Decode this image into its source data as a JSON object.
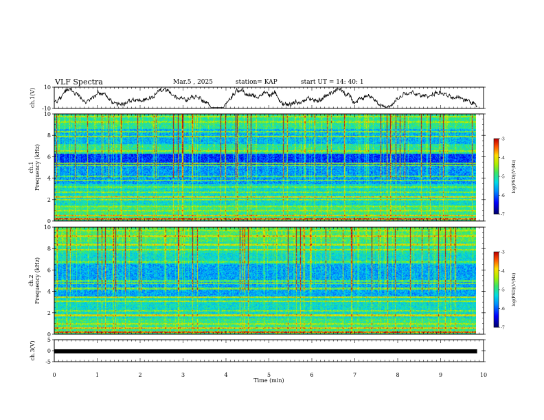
{
  "header": {
    "title": "VLF Spectra",
    "date": "Mar.5 , 2025",
    "station": "station= KAP",
    "start": "start UT = 14: 40: 1"
  },
  "chart_data": [
    {
      "type": "line",
      "name": "ch1-waveform",
      "ylabel": "ch.1(V)",
      "ylim": [
        -10,
        10
      ],
      "yticks": [
        10,
        -10
      ],
      "xlim": [
        0,
        10
      ],
      "x_end": 9.85
    },
    {
      "type": "heatmap",
      "name": "ch1-spectrogram",
      "ylabel": "ch.1\nFrequency (kHz)",
      "ylabel_lines": [
        "ch.1",
        "Frequency (kHz)"
      ],
      "ylim": [
        0,
        10
      ],
      "yticks": [
        0,
        2,
        4,
        6,
        8,
        10
      ],
      "xlim": [
        0,
        10
      ],
      "x_end": 9.85,
      "colorbar": {
        "label": "log(PSD)(V²/Hz)",
        "range": [
          -7,
          -3
        ],
        "ticks": [
          -3,
          -4,
          -5,
          -6,
          -7
        ]
      }
    },
    {
      "type": "heatmap",
      "name": "ch2-spectrogram",
      "ylabel_lines": [
        "ch.2",
        "Frequency (kHz)"
      ],
      "ylim": [
        0,
        10
      ],
      "yticks": [
        0,
        2,
        4,
        6,
        8,
        10
      ],
      "xlim": [
        0,
        10
      ],
      "x_end": 9.85,
      "colorbar": {
        "label": "log(PSD)(V²/Hz)",
        "range": [
          -7,
          -3
        ],
        "ticks": [
          -3,
          -4,
          -5,
          -6,
          -7
        ]
      }
    },
    {
      "type": "line",
      "name": "ch3-level",
      "ylabel": "ch.3(V)",
      "ylim": [
        -5,
        5
      ],
      "yticks": [
        5,
        0,
        -5
      ],
      "level": -0.3,
      "xlim": [
        0,
        10
      ],
      "x_end": 9.85,
      "xlabel": "Time (min)",
      "xticks": [
        0,
        1,
        2,
        3,
        4,
        5,
        6,
        7,
        8,
        9,
        10
      ]
    }
  ]
}
